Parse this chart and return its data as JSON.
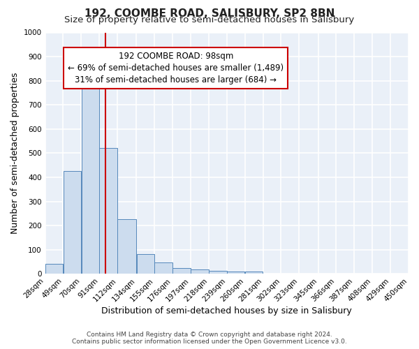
{
  "title": "192, COOMBE ROAD, SALISBURY, SP2 8BN",
  "subtitle": "Size of property relative to semi-detached houses in Salisbury",
  "xlabel": "Distribution of semi-detached houses by size in Salisbury",
  "ylabel": "Number of semi-detached properties",
  "bin_edges": [
    28,
    49,
    70,
    91,
    112,
    134,
    155,
    176,
    197,
    218,
    239,
    260,
    281,
    302,
    323,
    345,
    366,
    387,
    408,
    429,
    450
  ],
  "bin_counts": [
    40,
    425,
    800,
    520,
    225,
    82,
    47,
    25,
    18,
    12,
    8,
    10,
    0,
    0,
    0,
    0,
    0,
    0,
    0,
    0
  ],
  "bar_color": "#ccdcee",
  "bar_edge_color": "#5588bb",
  "property_size": 98,
  "vline_color": "#cc0000",
  "annotation_text": "192 COOMBE ROAD: 98sqm\n← 69% of semi-detached houses are smaller (1,489)\n31% of semi-detached houses are larger (684) →",
  "annotation_box_color": "#ffffff",
  "annotation_box_edge": "#cc0000",
  "ylim": [
    0,
    1000
  ],
  "yticks": [
    0,
    100,
    200,
    300,
    400,
    500,
    600,
    700,
    800,
    900,
    1000
  ],
  "tick_labels": [
    "28sqm",
    "49sqm",
    "70sqm",
    "91sqm",
    "112sqm",
    "134sqm",
    "155sqm",
    "176sqm",
    "197sqm",
    "218sqm",
    "239sqm",
    "260sqm",
    "281sqm",
    "302sqm",
    "323sqm",
    "345sqm",
    "366sqm",
    "387sqm",
    "408sqm",
    "429sqm",
    "450sqm"
  ],
  "footer_line1": "Contains HM Land Registry data © Crown copyright and database right 2024.",
  "footer_line2": "Contains public sector information licensed under the Open Government Licence v3.0.",
  "background_color": "#ffffff",
  "plot_bg_color": "#eaf0f8",
  "grid_color": "#ffffff",
  "title_fontsize": 11,
  "subtitle_fontsize": 9.5,
  "axis_label_fontsize": 9,
  "tick_fontsize": 7.5,
  "annotation_fontsize": 8.5,
  "footer_fontsize": 6.5
}
